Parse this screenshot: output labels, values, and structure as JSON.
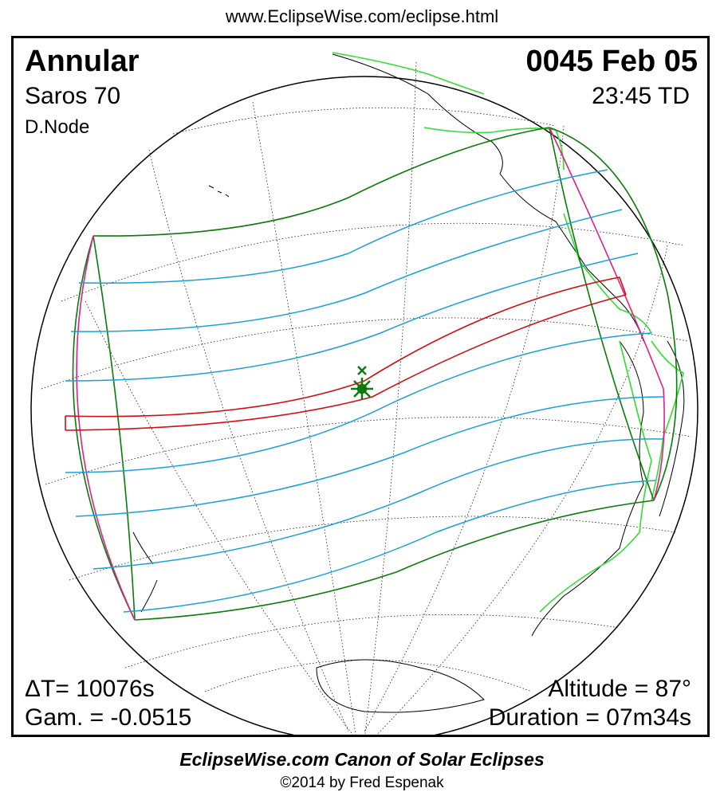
{
  "header": {
    "url": "www.EclipseWise.com/eclipse.html"
  },
  "eclipse": {
    "type": "Annular",
    "saros": "Saros  70",
    "node": "D.Node",
    "date": "0045 Feb 05",
    "time": "23:45 TD",
    "delta_t": "ΔT=  10076s",
    "gamma": "Gam. = -0.0515",
    "altitude": "Altitude = 87°",
    "duration": "Duration = 07m34s"
  },
  "footer": {
    "canon": "EclipseWise.com Canon of Solar Eclipses",
    "copyright": "©2014 by Fred Espenak"
  },
  "colors": {
    "central_path": "#d01010",
    "penumbral_limits": "#0a7a0a",
    "magnitude_lines": "#1aa0d8",
    "rise_set": "#e0208a",
    "coastlines": "#000000",
    "borders": "#33dd33"
  }
}
